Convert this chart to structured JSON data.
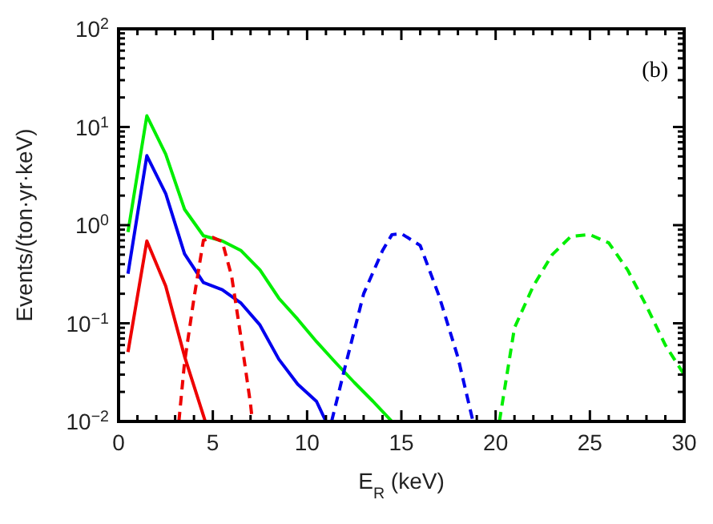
{
  "chart_data": {
    "type": "line",
    "xlabel": "E$_{R}$ (keV)",
    "ylabel": "Events/(ton·yr·keV)",
    "annotations": [
      "(b)"
    ],
    "xlim": [
      0,
      30
    ],
    "xticks": [
      0,
      5,
      10,
      15,
      20,
      25,
      30
    ],
    "ylim": [
      0.01,
      100
    ],
    "yticks": [
      {
        "value": 0.01,
        "label": "10$^{−2}$"
      },
      {
        "value": 0.1,
        "label": "10$^{−1}$"
      },
      {
        "value": 1,
        "label": "10$^{0}$"
      },
      {
        "value": 10,
        "label": "10$^{1}$"
      },
      {
        "value": 100,
        "label": "10$^{2}$"
      }
    ],
    "log": "y",
    "grid": false,
    "marker": "none",
    "series": [
      {
        "color": "#00ee00",
        "line_style": "solid",
        "x": [
          0.5,
          1.5,
          2.5,
          3.5,
          4.5,
          5.5,
          6.5,
          7.5,
          8.5,
          9.5,
          10.5,
          11.5,
          12.5,
          13.5,
          14.5
        ],
        "values": [
          0.85,
          13,
          5.3,
          1.45,
          0.78,
          0.69,
          0.55,
          0.35,
          0.18,
          0.11,
          0.065,
          0.04,
          0.025,
          0.016,
          0.01
        ]
      },
      {
        "color": "#0000ee",
        "line_style": "solid",
        "x": [
          0.5,
          1.5,
          2.5,
          3.5,
          4.5,
          5.5,
          6.5,
          7.5,
          8.5,
          9.5,
          10.5,
          11
        ],
        "values": [
          0.32,
          5.1,
          2.1,
          0.51,
          0.26,
          0.22,
          0.16,
          0.096,
          0.043,
          0.024,
          0.016,
          0.01
        ]
      },
      {
        "color": "#ee0000",
        "line_style": "solid",
        "x": [
          0.5,
          1.5,
          2.5,
          3.5,
          4.6
        ],
        "values": [
          0.051,
          0.69,
          0.24,
          0.046,
          0.01
        ]
      },
      {
        "color": "#ee0000",
        "line_style": "dashed",
        "x": [
          3.2,
          3.5,
          4,
          4.5,
          5,
          5.5,
          6,
          6.5,
          7,
          7.1
        ],
        "values": [
          0.01,
          0.04,
          0.18,
          0.7,
          0.75,
          0.68,
          0.3,
          0.07,
          0.015,
          0.01
        ]
      },
      {
        "color": "#0000ee",
        "line_style": "dashed",
        "x": [
          11.3,
          12,
          13,
          14,
          14.5,
          15,
          16,
          17,
          18,
          18.8
        ],
        "values": [
          0.01,
          0.035,
          0.2,
          0.55,
          0.8,
          0.82,
          0.62,
          0.19,
          0.045,
          0.01
        ]
      },
      {
        "color": "#00ee00",
        "line_style": "dashed",
        "x": [
          20.2,
          21,
          22,
          23,
          24,
          25,
          26,
          27,
          28,
          29,
          30
        ],
        "values": [
          0.01,
          0.09,
          0.24,
          0.5,
          0.77,
          0.8,
          0.66,
          0.35,
          0.15,
          0.06,
          0.03
        ]
      }
    ]
  }
}
